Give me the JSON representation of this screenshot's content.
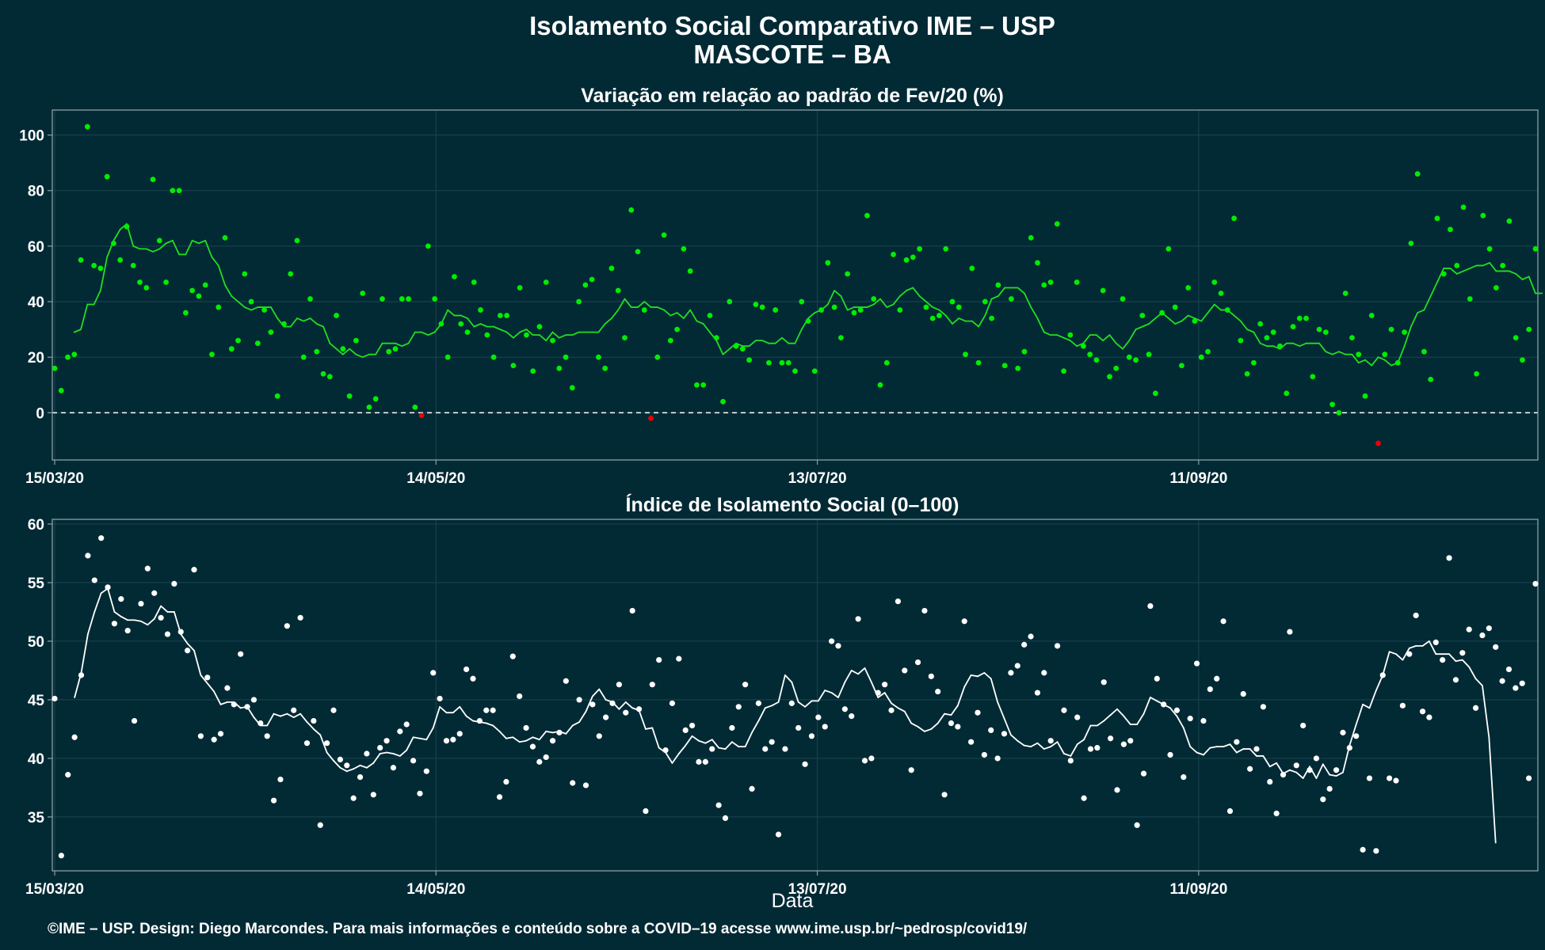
{
  "header": {
    "title": "Isolamento Social Comparativo IME – USP",
    "subtitle": "MASCOTE – BA"
  },
  "footer": {
    "credit": "©IME – USP. Design: Diego Marcondes. Para mais informações e conteúdo sobre a COVID–19 acesse www.ime.usp.br/~pedrosp/covid19/"
  },
  "colors": {
    "background": "#022a35",
    "panel_border": "#8aa0a5",
    "grid": "#1d4450",
    "points_positive": "#00ee00",
    "points_negative": "#ee0000",
    "line_top": "#22dd22",
    "points_bottom": "#ffffff",
    "line_bottom": "#ffffff"
  },
  "chart_data": [
    {
      "type": "scatter",
      "title": "Variação em relação ao padrão de Fev/20 (%)",
      "xlabel": "",
      "ylabel": "",
      "x_start": "15/03/20",
      "x_end": "03/11/20",
      "x_ticks": [
        "15/03/20",
        "14/05/20",
        "13/07/20",
        "11/09/20"
      ],
      "y_ticks": [
        0,
        20,
        40,
        60,
        80,
        100
      ],
      "ylim": [
        -17,
        109
      ],
      "reference_line": 0,
      "grid": true,
      "series": [
        {
          "kind": "points",
          "values": [
            16,
            8,
            20,
            21,
            55,
            103,
            53,
            52,
            85,
            61,
            55,
            67,
            53,
            47,
            45,
            84,
            62,
            47,
            80,
            80,
            36,
            44,
            42,
            46,
            21,
            38,
            63,
            23,
            26,
            50,
            40,
            25,
            37,
            29,
            6,
            32,
            50,
            62,
            20,
            41,
            22,
            14,
            13,
            35,
            23,
            6,
            26,
            43,
            2,
            5,
            41,
            22,
            23,
            41,
            41,
            2,
            -1,
            60,
            41,
            32,
            20,
            49,
            32,
            29,
            47,
            37,
            28,
            20,
            35,
            35,
            17,
            45,
            28,
            15,
            31,
            47,
            26,
            16,
            20,
            9,
            40,
            46,
            48,
            20,
            16,
            52,
            44,
            27,
            73,
            58,
            37,
            -2,
            20,
            64,
            26,
            30,
            59,
            51,
            10,
            10,
            35,
            27,
            4,
            40,
            24,
            23,
            19,
            39,
            38,
            18,
            37,
            18,
            18,
            15,
            40,
            33,
            15,
            37,
            54,
            38,
            27,
            50,
            36,
            37,
            71,
            41,
            10,
            18,
            57,
            37,
            55,
            56,
            59,
            38,
            34,
            35,
            59,
            40,
            38,
            21,
            52,
            18,
            40,
            34,
            46,
            17,
            41,
            16,
            22,
            63,
            54,
            46,
            47,
            68,
            15,
            28,
            47,
            24,
            21,
            19,
            44,
            13,
            16,
            41,
            20,
            19,
            35,
            21,
            7,
            36,
            59,
            38,
            17,
            45,
            33,
            20,
            22,
            47,
            43,
            37,
            70,
            26,
            14,
            18,
            32,
            27,
            29,
            24,
            7,
            31,
            34,
            34,
            13,
            30,
            29,
            3,
            0,
            43,
            27,
            21,
            6,
            35,
            -11,
            21,
            30,
            18,
            29,
            61,
            86,
            22,
            12,
            70,
            50,
            66,
            53,
            74,
            41,
            14,
            71,
            59,
            45,
            53,
            69,
            27,
            19,
            30,
            59
          ]
        },
        {
          "kind": "moving_average",
          "values": [
            null,
            null,
            null,
            29,
            30,
            39,
            39,
            44,
            56,
            62,
            66,
            68,
            60,
            59,
            59,
            58,
            59,
            61,
            62,
            57,
            57,
            62,
            61,
            62,
            56,
            53,
            46,
            42,
            40,
            38,
            37,
            38,
            38,
            38,
            34,
            31,
            31,
            34,
            33,
            34,
            32,
            31,
            25,
            23,
            21,
            23,
            21,
            20,
            21,
            21,
            25,
            25,
            25,
            24,
            25,
            29,
            29,
            28,
            29,
            32,
            37,
            35,
            35,
            34,
            31,
            32,
            31,
            31,
            30,
            29,
            27,
            29,
            30,
            28,
            28,
            26,
            29,
            27,
            28,
            28,
            29,
            29,
            29,
            29,
            32,
            34,
            37,
            41,
            38,
            38,
            40,
            38,
            38,
            37,
            35,
            36,
            34,
            37,
            33,
            32,
            29,
            26,
            21,
            23,
            25,
            24,
            24,
            26,
            26,
            25,
            25,
            27,
            25,
            25,
            30,
            34,
            36,
            37,
            39,
            44,
            42,
            37,
            38,
            38,
            38,
            39,
            41,
            38,
            39,
            42,
            44,
            45,
            42,
            40,
            38,
            37,
            35,
            32,
            34,
            33,
            33,
            31,
            35,
            41,
            42,
            45,
            45,
            45,
            43,
            38,
            34,
            29,
            28,
            28,
            27,
            26,
            24,
            25,
            28,
            28,
            26,
            28,
            25,
            23,
            26,
            30,
            31,
            32,
            34,
            36,
            34,
            32,
            33,
            35,
            34,
            33,
            36,
            39,
            37,
            37,
            35,
            33,
            30,
            29,
            25,
            24,
            24,
            23,
            25,
            25,
            24,
            25,
            25,
            25,
            22,
            21,
            22,
            21,
            21,
            18,
            19,
            17,
            20,
            19,
            17,
            18,
            24,
            31,
            36,
            37,
            42,
            47,
            52,
            52,
            50,
            51,
            52,
            53,
            53,
            54,
            51,
            51,
            51,
            50,
            48,
            49,
            43,
            43
          ]
        }
      ]
    },
    {
      "type": "scatter",
      "title": "Índice de Isolamento Social (0–100)",
      "xlabel": "Data",
      "ylabel": "",
      "x_start": "15/03/20",
      "x_end": "03/11/20",
      "x_ticks": [
        "15/03/20",
        "14/05/20",
        "13/07/20",
        "11/09/20"
      ],
      "y_ticks": [
        35,
        40,
        45,
        50,
        55,
        60
      ],
      "ylim": [
        30.4,
        60.4
      ],
      "grid": true,
      "series": [
        {
          "kind": "points",
          "values": [
            45.1,
            31.7,
            38.6,
            41.8,
            47.1,
            57.3,
            55.2,
            58.8,
            54.6,
            51.5,
            53.6,
            50.9,
            43.2,
            53.2,
            56.2,
            54.1,
            52.0,
            50.6,
            54.9,
            50.8,
            49.2,
            56.1,
            41.9,
            46.9,
            41.6,
            42.1,
            46.0,
            44.6,
            48.9,
            44.4,
            45.0,
            43.0,
            41.9,
            36.4,
            38.2,
            51.3,
            44.1,
            52.0,
            41.3,
            43.2,
            34.3,
            41.3,
            44.1,
            39.9,
            39.4,
            36.6,
            38.4,
            40.4,
            36.9,
            40.9,
            41.5,
            39.2,
            42.3,
            42.9,
            39.8,
            37.0,
            38.9,
            47.3,
            45.1,
            41.5,
            41.6,
            42.1,
            47.6,
            46.8,
            43.2,
            44.1,
            44.1,
            36.7,
            38.0,
            48.7,
            45.3,
            42.6,
            41.0,
            39.7,
            40.1,
            41.5,
            42.2,
            46.6,
            37.9,
            45.0,
            37.7,
            44.6,
            41.9,
            43.5,
            44.7,
            46.3,
            43.9,
            52.6,
            44.2,
            35.5,
            46.3,
            48.4,
            40.7,
            44.7,
            48.5,
            42.4,
            42.8,
            39.7,
            39.7,
            40.8,
            36.0,
            34.9,
            42.6,
            44.4,
            46.3,
            37.4,
            44.7,
            40.8,
            41.4,
            33.5,
            40.8,
            44.7,
            42.6,
            39.5,
            41.9,
            43.5,
            42.7,
            50.0,
            49.6,
            44.2,
            43.6,
            51.9,
            39.8,
            40.0,
            45.6,
            46.3,
            44.1,
            53.4,
            47.5,
            39.0,
            48.2,
            52.6,
            47.0,
            45.7,
            36.9,
            43.0,
            42.7,
            51.7,
            41.4,
            43.9,
            40.3,
            42.4,
            40.0,
            42.1,
            47.3,
            47.9,
            49.7,
            50.4,
            45.6,
            47.3,
            41.5,
            49.6,
            44.1,
            39.8,
            43.5,
            36.6,
            40.8,
            40.9,
            46.5,
            41.7,
            37.3,
            41.2,
            41.5,
            34.3,
            38.7,
            53.0,
            46.8,
            44.6,
            40.3,
            44.1,
            38.4,
            43.4,
            48.1,
            43.2,
            45.9,
            46.8,
            51.7,
            35.5,
            41.4,
            45.5,
            39.1,
            40.8,
            44.4,
            38.0,
            35.3,
            38.6,
            50.8,
            39.4,
            42.8,
            39.0,
            40.0,
            36.5,
            37.4,
            39.0,
            42.2,
            40.9,
            41.9,
            32.2,
            38.3,
            32.1,
            47.1,
            38.3,
            38.1,
            44.5,
            48.9,
            52.2,
            44.0,
            43.5,
            49.9,
            48.4,
            57.1,
            46.7,
            49.0,
            51.0,
            44.3,
            50.5,
            51.1,
            49.5,
            46.6,
            47.6,
            46.0,
            46.4,
            38.3,
            54.9
          ]
        },
        {
          "kind": "moving_average",
          "values": [
            null,
            null,
            null,
            45.2,
            47.3,
            50.6,
            52.5,
            54.1,
            54.5,
            52.5,
            52.1,
            51.8,
            51.8,
            51.7,
            51.4,
            51.9,
            53.0,
            52.5,
            52.5,
            50.6,
            49.8,
            49.2,
            47.1,
            46.4,
            45.7,
            44.6,
            44.8,
            44.8,
            44.3,
            44.4,
            43.5,
            42.8,
            42.8,
            43.8,
            43.6,
            43.8,
            43.5,
            43.8,
            43.1,
            42.5,
            42.0,
            40.5,
            39.8,
            39.2,
            38.9,
            39.1,
            39.4,
            39.2,
            39.6,
            40.4,
            40.5,
            40.4,
            40.2,
            40.7,
            41.8,
            41.7,
            41.6,
            42.6,
            44.4,
            43.9,
            43.9,
            44.4,
            43.6,
            43.2,
            43.1,
            43.0,
            42.8,
            42.3,
            41.7,
            41.8,
            41.4,
            41.5,
            41.8,
            41.6,
            42.3,
            42.2,
            42.3,
            42.1,
            42.8,
            43.1,
            44.0,
            45.3,
            45.9,
            45.0,
            44.8,
            44.2,
            44.8,
            44.3,
            44.1,
            42.5,
            42.6,
            40.9,
            40.5,
            39.6,
            40.4,
            41.1,
            41.9,
            41.5,
            41.3,
            41.6,
            40.9,
            40.8,
            41.4,
            41.0,
            41.0,
            42.2,
            43.2,
            44.3,
            44.5,
            44.8,
            47.1,
            46.5,
            44.8,
            44.4,
            44.9,
            44.9,
            45.8,
            45.6,
            45.2,
            46.5,
            47.5,
            47.2,
            47.7,
            46.5,
            45.2,
            45.6,
            44.7,
            44.3,
            44.0,
            43.0,
            42.7,
            42.3,
            42.5,
            43.0,
            43.8,
            43.7,
            44.5,
            46.1,
            47.1,
            47.0,
            47.3,
            46.8,
            44.8,
            43.4,
            42.0,
            41.5,
            41.1,
            41.0,
            41.3,
            40.8,
            41.0,
            41.4,
            40.4,
            40.2,
            41.2,
            41.6,
            42.8,
            42.8,
            43.2,
            43.7,
            44.2,
            43.6,
            42.9,
            42.9,
            43.8,
            45.2,
            44.9,
            44.6,
            44.3,
            43.6,
            42.6,
            41.0,
            40.5,
            40.3,
            40.9,
            41.0,
            41.0,
            41.2,
            40.5,
            40.8,
            40.8,
            40.2,
            40.2,
            39.3,
            39.6,
            38.7,
            39.0,
            38.8,
            38.3,
            39.3,
            38.3,
            39.5,
            38.6,
            38.5,
            38.8,
            41.1,
            42.9,
            44.6,
            44.3,
            45.8,
            47.1,
            49.1,
            48.9,
            48.4,
            49.4,
            49.6,
            49.6,
            50.0,
            48.9,
            48.9,
            48.9,
            48.3,
            48.4,
            47.8,
            46.8,
            46.2,
            41.8,
            32.8
          ]
        }
      ]
    }
  ]
}
